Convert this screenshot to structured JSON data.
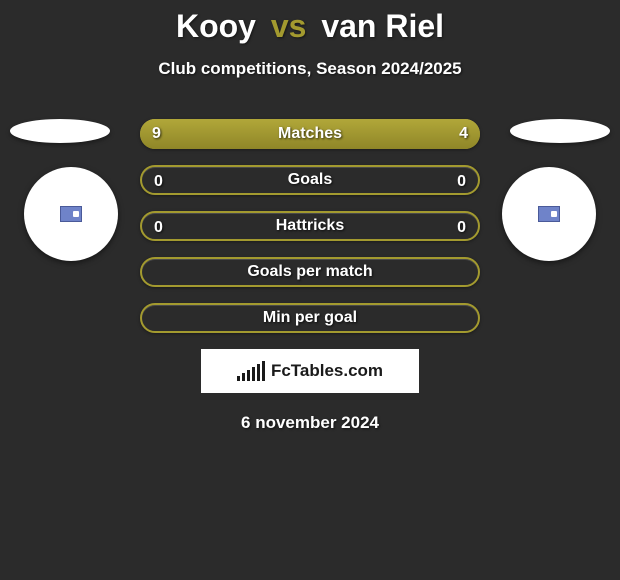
{
  "title": {
    "player1": "Kooy",
    "vs": "vs",
    "player2": "van Riel",
    "title_fontsize": 32,
    "player_color": "#ffffff",
    "vs_color": "#a39a2f"
  },
  "subtitle": "Club competitions, Season 2024/2025",
  "subtitle_fontsize": 17,
  "background_color": "#2b2b2b",
  "accent_color": "#a39a2f",
  "bar_gradient": [
    "#b1a739",
    "#8f8628"
  ],
  "text_color": "#ffffff",
  "rows": [
    {
      "label": "Matches",
      "left_value": "9",
      "right_value": "4",
      "left_pct": 69,
      "right_pct": 31,
      "mode": "split"
    },
    {
      "label": "Goals",
      "left_value": "0",
      "right_value": "0",
      "left_pct": 0,
      "right_pct": 0,
      "mode": "empty-border"
    },
    {
      "label": "Hattricks",
      "left_value": "0",
      "right_value": "0",
      "left_pct": 0,
      "right_pct": 0,
      "mode": "empty-border"
    },
    {
      "label": "Goals per match",
      "left_value": "",
      "right_value": "",
      "left_pct": 0,
      "right_pct": 0,
      "mode": "empty-border"
    },
    {
      "label": "Min per goal",
      "left_value": "",
      "right_value": "",
      "left_pct": 0,
      "right_pct": 0,
      "mode": "empty-border"
    }
  ],
  "row_style": {
    "height": 30,
    "radius": 15,
    "gap": 16,
    "label_fontsize": 16,
    "value_fontsize": 16
  },
  "flags": {
    "shape": "ellipse",
    "color": "#ffffff",
    "width": 100,
    "height": 24
  },
  "badges": {
    "shape": "circle",
    "color": "#ffffff",
    "diameter": 94,
    "inner_color": "#6f83c9"
  },
  "footer": {
    "logo_text": "FcTables.com",
    "logo_bg": "#ffffff",
    "logo_fg": "#1a1a1a",
    "bar_heights": [
      5,
      8,
      11,
      14,
      17,
      20
    ]
  },
  "date": "6 november 2024"
}
